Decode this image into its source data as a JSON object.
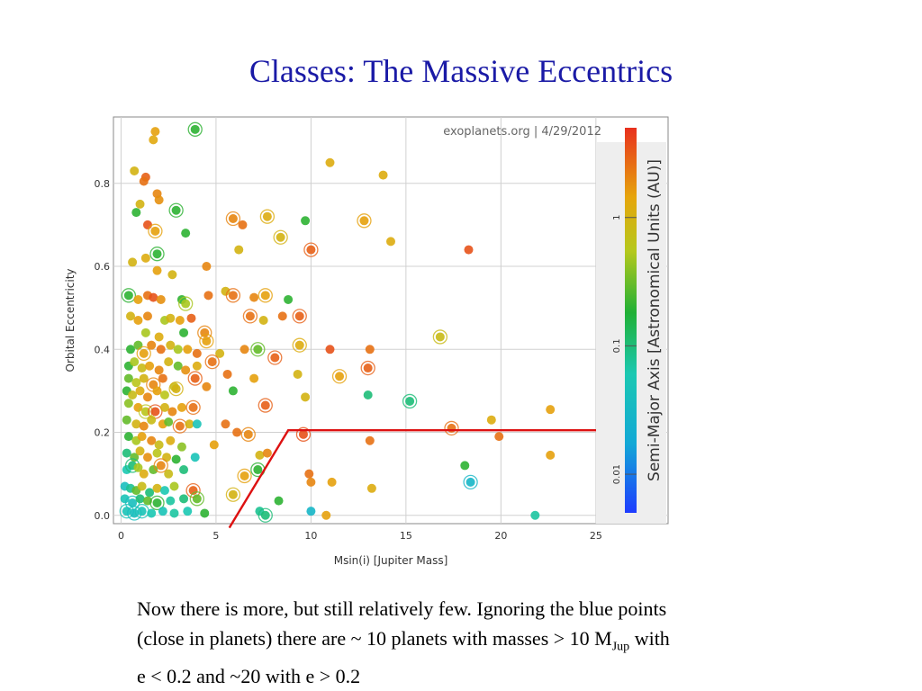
{
  "slide": {
    "title": "Classes: The Massive Eccentrics",
    "caption_line1": "Now there is more, but still relatively few. Ignoring the blue points",
    "caption_line2_a": "(close in planets) there are ~ 10 planets with masses > 10 M",
    "caption_line2_sub": "Jup",
    "caption_line2_b": " with",
    "caption_line3": "e < 0.2 and ~20 with e > 0.2"
  },
  "chart_data": {
    "type": "scatter",
    "title": "",
    "watermark": "exoplanets.org | 4/29/2012",
    "xlabel": "Msin(i) [Jupiter Mass]",
    "ylabel": "Orbital Eccentricity",
    "colorbar_label": "Semi-Major Axis [Astronomical Units (AU)]",
    "colorbar_ticks": [
      "0.01",
      "0.1",
      "1"
    ],
    "colorbar_range": [
      0.005,
      5
    ],
    "colorbar_scale": "log",
    "xlim": [
      -0.4,
      28.8
    ],
    "ylim": [
      -0.02,
      0.96
    ],
    "xticks": [
      0,
      5,
      10,
      15,
      20,
      25
    ],
    "yticks": [
      0.0,
      0.2,
      0.4,
      0.6,
      0.8
    ],
    "ytick_labels": [
      "0.0",
      "0.2",
      "0.4",
      "0.6",
      "0.8"
    ],
    "grid": true,
    "selection_line": {
      "color": "#dd1111",
      "points": [
        [
          5.7,
          -0.03
        ],
        [
          8.8,
          0.205
        ],
        [
          25.5,
          0.205
        ]
      ]
    },
    "points": [
      {
        "x": 3.9,
        "y": 0.93,
        "a": 0.2,
        "ring": true
      },
      {
        "x": 1.8,
        "y": 0.925,
        "a": 1.5
      },
      {
        "x": 1.7,
        "y": 0.905,
        "a": 1.3
      },
      {
        "x": 0.7,
        "y": 0.83,
        "a": 1.0
      },
      {
        "x": 1.3,
        "y": 0.815,
        "a": 3.0
      },
      {
        "x": 1.2,
        "y": 0.805,
        "a": 2.5
      },
      {
        "x": 1.9,
        "y": 0.775,
        "a": 2.0
      },
      {
        "x": 2.0,
        "y": 0.76,
        "a": 1.8
      },
      {
        "x": 1.0,
        "y": 0.75,
        "a": 1.0
      },
      {
        "x": 0.8,
        "y": 0.73,
        "a": 0.2
      },
      {
        "x": 2.9,
        "y": 0.735,
        "a": 0.2,
        "ring": true
      },
      {
        "x": 1.4,
        "y": 0.7,
        "a": 3.5
      },
      {
        "x": 1.8,
        "y": 0.685,
        "a": 1.5,
        "ring": true
      },
      {
        "x": 3.4,
        "y": 0.68,
        "a": 0.2
      },
      {
        "x": 1.9,
        "y": 0.63,
        "a": 0.2,
        "ring": true
      },
      {
        "x": 0.6,
        "y": 0.61,
        "a": 1.0
      },
      {
        "x": 1.3,
        "y": 0.62,
        "a": 1.2
      },
      {
        "x": 4.5,
        "y": 0.6,
        "a": 2.0
      },
      {
        "x": 1.9,
        "y": 0.59,
        "a": 1.5
      },
      {
        "x": 2.7,
        "y": 0.58,
        "a": 1.0
      },
      {
        "x": 1.4,
        "y": 0.53,
        "a": 2.5
      },
      {
        "x": 0.4,
        "y": 0.53,
        "a": 0.2,
        "ring": true
      },
      {
        "x": 0.9,
        "y": 0.52,
        "a": 1.5
      },
      {
        "x": 1.7,
        "y": 0.525,
        "a": 3.5
      },
      {
        "x": 2.1,
        "y": 0.52,
        "a": 1.8
      },
      {
        "x": 3.2,
        "y": 0.52,
        "a": 0.2
      },
      {
        "x": 3.4,
        "y": 0.51,
        "a": 0.5,
        "ring": true
      },
      {
        "x": 4.6,
        "y": 0.53,
        "a": 2.5
      },
      {
        "x": 5.5,
        "y": 0.54,
        "a": 1.0
      },
      {
        "x": 5.9,
        "y": 0.53,
        "a": 2.5,
        "ring": true
      },
      {
        "x": 7.0,
        "y": 0.525,
        "a": 2.0
      },
      {
        "x": 7.6,
        "y": 0.53,
        "a": 1.5,
        "ring": true
      },
      {
        "x": 8.8,
        "y": 0.52,
        "a": 0.2
      },
      {
        "x": 0.5,
        "y": 0.48,
        "a": 1.0
      },
      {
        "x": 0.9,
        "y": 0.47,
        "a": 1.5
      },
      {
        "x": 1.4,
        "y": 0.48,
        "a": 2.0
      },
      {
        "x": 2.3,
        "y": 0.47,
        "a": 0.5
      },
      {
        "x": 2.6,
        "y": 0.475,
        "a": 1.0
      },
      {
        "x": 3.1,
        "y": 0.47,
        "a": 1.5
      },
      {
        "x": 3.7,
        "y": 0.475,
        "a": 3.0
      },
      {
        "x": 6.8,
        "y": 0.48,
        "a": 2.5,
        "ring": true
      },
      {
        "x": 7.5,
        "y": 0.47,
        "a": 1.0
      },
      {
        "x": 9.4,
        "y": 0.48,
        "a": 3.0,
        "ring": true
      },
      {
        "x": 1.3,
        "y": 0.44,
        "a": 0.5
      },
      {
        "x": 2.0,
        "y": 0.43,
        "a": 1.2
      },
      {
        "x": 3.3,
        "y": 0.44,
        "a": 0.2
      },
      {
        "x": 4.4,
        "y": 0.44,
        "a": 2.0,
        "ring": true
      },
      {
        "x": 4.5,
        "y": 0.42,
        "a": 1.5,
        "ring": true
      },
      {
        "x": 0.5,
        "y": 0.4,
        "a": 0.2
      },
      {
        "x": 0.9,
        "y": 0.41,
        "a": 0.3
      },
      {
        "x": 1.2,
        "y": 0.39,
        "a": 1.5,
        "ring": true
      },
      {
        "x": 1.6,
        "y": 0.41,
        "a": 2.0
      },
      {
        "x": 2.1,
        "y": 0.4,
        "a": 2.5
      },
      {
        "x": 2.6,
        "y": 0.41,
        "a": 1.0
      },
      {
        "x": 3.0,
        "y": 0.4,
        "a": 0.5
      },
      {
        "x": 3.5,
        "y": 0.4,
        "a": 1.5
      },
      {
        "x": 4.0,
        "y": 0.39,
        "a": 2.5
      },
      {
        "x": 5.2,
        "y": 0.39,
        "a": 1.0
      },
      {
        "x": 6.5,
        "y": 0.4,
        "a": 2.0
      },
      {
        "x": 7.2,
        "y": 0.4,
        "a": 0.3,
        "ring": true
      },
      {
        "x": 8.1,
        "y": 0.38,
        "a": 3.0,
        "ring": true
      },
      {
        "x": 9.4,
        "y": 0.41,
        "a": 1.2,
        "ring": true
      },
      {
        "x": 11.0,
        "y": 0.4,
        "a": 3.5
      },
      {
        "x": 13.1,
        "y": 0.4,
        "a": 2.5
      },
      {
        "x": 16.8,
        "y": 0.43,
        "a": 0.8,
        "ring": true
      },
      {
        "x": 0.4,
        "y": 0.36,
        "a": 0.2
      },
      {
        "x": 0.7,
        "y": 0.37,
        "a": 0.5
      },
      {
        "x": 1.1,
        "y": 0.355,
        "a": 0.8
      },
      {
        "x": 1.5,
        "y": 0.36,
        "a": 1.5
      },
      {
        "x": 2.0,
        "y": 0.35,
        "a": 2.0
      },
      {
        "x": 2.5,
        "y": 0.37,
        "a": 1.0
      },
      {
        "x": 3.0,
        "y": 0.36,
        "a": 0.3
      },
      {
        "x": 3.4,
        "y": 0.35,
        "a": 1.8
      },
      {
        "x": 4.0,
        "y": 0.36,
        "a": 1.2
      },
      {
        "x": 4.8,
        "y": 0.37,
        "a": 2.5,
        "ring": true
      },
      {
        "x": 0.4,
        "y": 0.33,
        "a": 0.3
      },
      {
        "x": 0.8,
        "y": 0.32,
        "a": 0.6
      },
      {
        "x": 1.2,
        "y": 0.33,
        "a": 1.0
      },
      {
        "x": 1.7,
        "y": 0.315,
        "a": 2.0,
        "ring": true
      },
      {
        "x": 2.2,
        "y": 0.33,
        "a": 2.5
      },
      {
        "x": 2.8,
        "y": 0.31,
        "a": 0.8
      },
      {
        "x": 3.9,
        "y": 0.33,
        "a": 3.0,
        "ring": true
      },
      {
        "x": 5.6,
        "y": 0.34,
        "a": 2.5
      },
      {
        "x": 7.0,
        "y": 0.33,
        "a": 1.5
      },
      {
        "x": 9.3,
        "y": 0.34,
        "a": 1.0
      },
      {
        "x": 11.5,
        "y": 0.335,
        "a": 1.5,
        "ring": true
      },
      {
        "x": 13.0,
        "y": 0.355,
        "a": 3.0,
        "ring": true
      },
      {
        "x": 0.3,
        "y": 0.3,
        "a": 0.2
      },
      {
        "x": 0.6,
        "y": 0.29,
        "a": 0.8
      },
      {
        "x": 1.0,
        "y": 0.3,
        "a": 1.2
      },
      {
        "x": 1.4,
        "y": 0.285,
        "a": 2.0
      },
      {
        "x": 1.9,
        "y": 0.3,
        "a": 1.5
      },
      {
        "x": 2.3,
        "y": 0.29,
        "a": 0.6
      },
      {
        "x": 2.9,
        "y": 0.305,
        "a": 1.0,
        "ring": true
      },
      {
        "x": 4.5,
        "y": 0.31,
        "a": 2.0
      },
      {
        "x": 5.9,
        "y": 0.3,
        "a": 0.2
      },
      {
        "x": 9.7,
        "y": 0.285,
        "a": 1.0
      },
      {
        "x": 13.0,
        "y": 0.29,
        "a": 0.1
      },
      {
        "x": 0.4,
        "y": 0.27,
        "a": 0.4
      },
      {
        "x": 0.9,
        "y": 0.26,
        "a": 1.5
      },
      {
        "x": 1.3,
        "y": 0.25,
        "a": 0.6,
        "ring": true
      },
      {
        "x": 1.8,
        "y": 0.25,
        "a": 3.5,
        "ring": true
      },
      {
        "x": 2.3,
        "y": 0.26,
        "a": 1.0
      },
      {
        "x": 2.7,
        "y": 0.25,
        "a": 2.0
      },
      {
        "x": 3.2,
        "y": 0.26,
        "a": 1.5
      },
      {
        "x": 3.8,
        "y": 0.26,
        "a": 2.5,
        "ring": true
      },
      {
        "x": 7.6,
        "y": 0.265,
        "a": 3.0,
        "ring": true
      },
      {
        "x": 15.2,
        "y": 0.275,
        "a": 0.1,
        "ring": true
      },
      {
        "x": 22.6,
        "y": 0.255,
        "a": 1.5
      },
      {
        "x": 0.3,
        "y": 0.23,
        "a": 0.3
      },
      {
        "x": 0.8,
        "y": 0.22,
        "a": 1.0
      },
      {
        "x": 1.2,
        "y": 0.215,
        "a": 2.0
      },
      {
        "x": 1.6,
        "y": 0.23,
        "a": 0.8
      },
      {
        "x": 2.2,
        "y": 0.22,
        "a": 1.5
      },
      {
        "x": 2.5,
        "y": 0.225,
        "a": 0.3
      },
      {
        "x": 3.1,
        "y": 0.215,
        "a": 2.5,
        "ring": true
      },
      {
        "x": 3.6,
        "y": 0.22,
        "a": 1.0
      },
      {
        "x": 4.0,
        "y": 0.22,
        "a": 0.05
      },
      {
        "x": 5.5,
        "y": 0.22,
        "a": 2.5
      },
      {
        "x": 17.4,
        "y": 0.21,
        "a": 2.5,
        "ring": true
      },
      {
        "x": 19.5,
        "y": 0.23,
        "a": 1.2
      },
      {
        "x": 0.4,
        "y": 0.19,
        "a": 0.2
      },
      {
        "x": 0.8,
        "y": 0.18,
        "a": 0.5
      },
      {
        "x": 1.1,
        "y": 0.19,
        "a": 1.5
      },
      {
        "x": 1.6,
        "y": 0.18,
        "a": 2.0
      },
      {
        "x": 2.0,
        "y": 0.17,
        "a": 0.8
      },
      {
        "x": 2.6,
        "y": 0.18,
        "a": 1.2
      },
      {
        "x": 3.2,
        "y": 0.165,
        "a": 0.4
      },
      {
        "x": 4.9,
        "y": 0.17,
        "a": 1.5
      },
      {
        "x": 6.1,
        "y": 0.2,
        "a": 2.5
      },
      {
        "x": 6.7,
        "y": 0.195,
        "a": 2.0,
        "ring": true
      },
      {
        "x": 9.6,
        "y": 0.195,
        "a": 3.5,
        "ring": true
      },
      {
        "x": 13.1,
        "y": 0.18,
        "a": 2.5
      },
      {
        "x": 19.9,
        "y": 0.19,
        "a": 2.5
      },
      {
        "x": 0.3,
        "y": 0.15,
        "a": 0.1
      },
      {
        "x": 0.7,
        "y": 0.14,
        "a": 0.3
      },
      {
        "x": 1.0,
        "y": 0.155,
        "a": 1.0
      },
      {
        "x": 1.4,
        "y": 0.14,
        "a": 1.8
      },
      {
        "x": 1.9,
        "y": 0.15,
        "a": 0.6
      },
      {
        "x": 2.4,
        "y": 0.14,
        "a": 1.0
      },
      {
        "x": 2.9,
        "y": 0.135,
        "a": 0.2
      },
      {
        "x": 3.9,
        "y": 0.14,
        "a": 0.05
      },
      {
        "x": 7.3,
        "y": 0.145,
        "a": 1.0
      },
      {
        "x": 7.7,
        "y": 0.15,
        "a": 2.0
      },
      {
        "x": 22.6,
        "y": 0.145,
        "a": 1.5
      },
      {
        "x": 0.3,
        "y": 0.11,
        "a": 0.06
      },
      {
        "x": 0.6,
        "y": 0.12,
        "a": 0.1,
        "ring": true
      },
      {
        "x": 0.9,
        "y": 0.115,
        "a": 0.5
      },
      {
        "x": 1.2,
        "y": 0.1,
        "a": 1.2
      },
      {
        "x": 1.7,
        "y": 0.11,
        "a": 0.3
      },
      {
        "x": 2.1,
        "y": 0.12,
        "a": 2.0,
        "ring": true
      },
      {
        "x": 2.5,
        "y": 0.1,
        "a": 0.8
      },
      {
        "x": 3.3,
        "y": 0.11,
        "a": 0.1
      },
      {
        "x": 6.5,
        "y": 0.095,
        "a": 1.5,
        "ring": true
      },
      {
        "x": 7.2,
        "y": 0.11,
        "a": 0.2,
        "ring": true
      },
      {
        "x": 9.9,
        "y": 0.1,
        "a": 2.5
      },
      {
        "x": 10.0,
        "y": 0.08,
        "a": 2.0
      },
      {
        "x": 11.1,
        "y": 0.08,
        "a": 1.5
      },
      {
        "x": 18.1,
        "y": 0.12,
        "a": 0.2
      },
      {
        "x": 18.4,
        "y": 0.08,
        "a": 0.03,
        "ring": true
      },
      {
        "x": 0.2,
        "y": 0.07,
        "a": 0.04
      },
      {
        "x": 0.5,
        "y": 0.065,
        "a": 0.08
      },
      {
        "x": 0.8,
        "y": 0.06,
        "a": 0.3
      },
      {
        "x": 1.1,
        "y": 0.07,
        "a": 0.8
      },
      {
        "x": 1.5,
        "y": 0.055,
        "a": 0.1
      },
      {
        "x": 1.9,
        "y": 0.065,
        "a": 1.0
      },
      {
        "x": 2.3,
        "y": 0.06,
        "a": 0.06
      },
      {
        "x": 2.8,
        "y": 0.07,
        "a": 0.5
      },
      {
        "x": 3.8,
        "y": 0.06,
        "a": 3.0,
        "ring": true
      },
      {
        "x": 5.9,
        "y": 0.05,
        "a": 1.0,
        "ring": true
      },
      {
        "x": 13.2,
        "y": 0.065,
        "a": 1.2
      },
      {
        "x": 0.2,
        "y": 0.04,
        "a": 0.05
      },
      {
        "x": 0.6,
        "y": 0.03,
        "a": 0.04,
        "ring": true
      },
      {
        "x": 1.0,
        "y": 0.04,
        "a": 0.1
      },
      {
        "x": 1.4,
        "y": 0.035,
        "a": 0.3
      },
      {
        "x": 1.9,
        "y": 0.03,
        "a": 0.2,
        "ring": true
      },
      {
        "x": 2.6,
        "y": 0.035,
        "a": 0.07
      },
      {
        "x": 3.3,
        "y": 0.04,
        "a": 0.1
      },
      {
        "x": 4.0,
        "y": 0.04,
        "a": 0.3,
        "ring": true
      },
      {
        "x": 8.3,
        "y": 0.035,
        "a": 0.2
      },
      {
        "x": 0.3,
        "y": 0.01,
        "a": 0.05,
        "ring": true
      },
      {
        "x": 0.7,
        "y": 0.005,
        "a": 0.04,
        "ring": true
      },
      {
        "x": 1.1,
        "y": 0.01,
        "a": 0.05,
        "ring": true
      },
      {
        "x": 1.6,
        "y": 0.005,
        "a": 0.06
      },
      {
        "x": 2.2,
        "y": 0.01,
        "a": 0.05
      },
      {
        "x": 2.8,
        "y": 0.005,
        "a": 0.07
      },
      {
        "x": 3.5,
        "y": 0.01,
        "a": 0.06
      },
      {
        "x": 4.4,
        "y": 0.005,
        "a": 0.2
      },
      {
        "x": 7.3,
        "y": 0.01,
        "a": 0.08
      },
      {
        "x": 7.6,
        "y": 0.0,
        "a": 0.1,
        "ring": true
      },
      {
        "x": 10.0,
        "y": 0.01,
        "a": 0.03
      },
      {
        "x": 10.8,
        "y": 0.0,
        "a": 1.5
      },
      {
        "x": 21.8,
        "y": 0.0,
        "a": 0.07
      },
      {
        "x": 18.3,
        "y": 0.64,
        "a": 3.5
      },
      {
        "x": 14.2,
        "y": 0.66,
        "a": 1.2
      },
      {
        "x": 13.8,
        "y": 0.82,
        "a": 1.2
      },
      {
        "x": 11.0,
        "y": 0.85,
        "a": 1.2
      },
      {
        "x": 12.8,
        "y": 0.71,
        "a": 1.5,
        "ring": true
      },
      {
        "x": 10.0,
        "y": 0.64,
        "a": 3.0,
        "ring": true
      },
      {
        "x": 9.7,
        "y": 0.71,
        "a": 0.2
      },
      {
        "x": 8.4,
        "y": 0.67,
        "a": 1.0,
        "ring": true
      },
      {
        "x": 7.7,
        "y": 0.72,
        "a": 1.2,
        "ring": true
      },
      {
        "x": 6.4,
        "y": 0.7,
        "a": 2.5
      },
      {
        "x": 5.9,
        "y": 0.715,
        "a": 2.0,
        "ring": true
      },
      {
        "x": 6.2,
        "y": 0.64,
        "a": 1.0
      },
      {
        "x": 8.5,
        "y": 0.48,
        "a": 2.5
      }
    ]
  }
}
